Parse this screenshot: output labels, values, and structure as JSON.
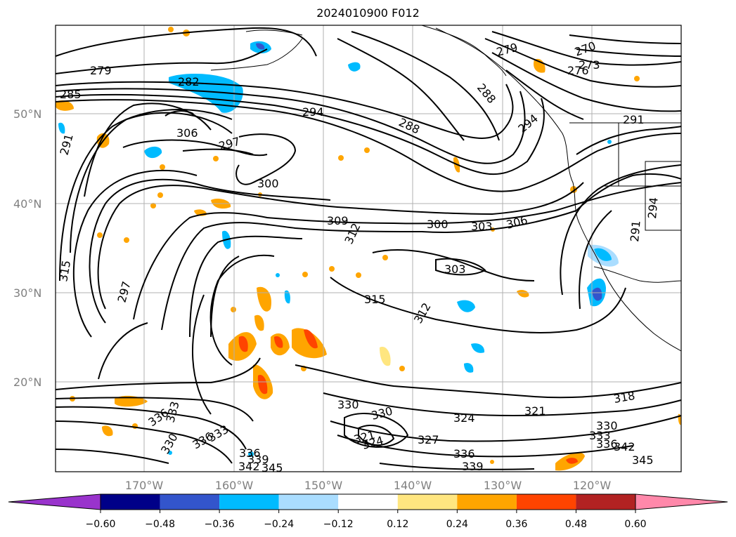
{
  "title": "2024010900 F012",
  "map": {
    "lat_labels": [
      "50°N",
      "40°N",
      "30°N",
      "20°N"
    ],
    "lon_labels": [
      "170°W",
      "160°W",
      "150°W",
      "140°W",
      "130°W",
      "120°W"
    ],
    "contour_labels": [
      "279",
      "285",
      "282",
      "294",
      "288",
      "279",
      "270",
      "273",
      "276",
      "291",
      "294",
      "291",
      "306",
      "297",
      "300",
      "309",
      "312",
      "300",
      "303",
      "306",
      "303",
      "315",
      "312",
      "297",
      "315",
      "318",
      "321",
      "324",
      "327",
      "330",
      "330",
      "336",
      "333",
      "330",
      "336",
      "333",
      "336",
      "339",
      "342",
      "345",
      "324",
      "321",
      "336",
      "339",
      "342",
      "345",
      "330",
      "333",
      "336",
      "291",
      "294",
      "288"
    ]
  },
  "colorbar": {
    "tick_labels": [
      "−0.60",
      "−0.48",
      "−0.36",
      "−0.24",
      "−0.12",
      "0.12",
      "0.24",
      "0.36",
      "0.48",
      "0.60"
    ],
    "colors": [
      "#9933cc",
      "#000088",
      "#3355cc",
      "#00bbff",
      "#aaddff",
      "#ffffff",
      "#ffe680",
      "#ffa500",
      "#ff4400",
      "#b22222",
      "#ff88aa"
    ]
  }
}
